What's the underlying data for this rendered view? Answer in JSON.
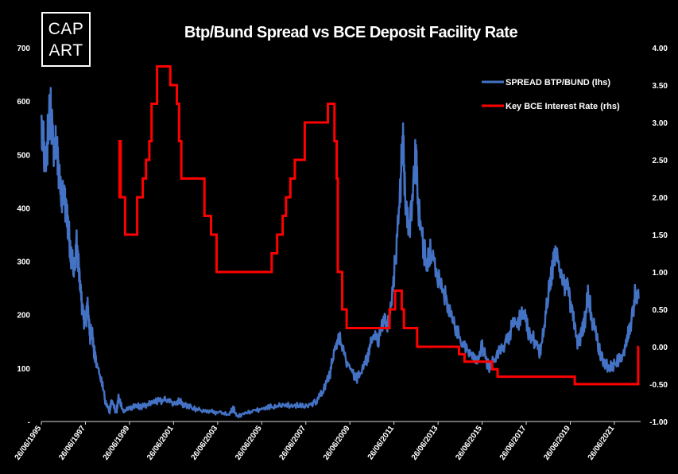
{
  "logo": {
    "line1": "CAP",
    "line2": "ART"
  },
  "chart_data": {
    "type": "line",
    "title": "Btp/Bund Spread vs BCE Deposit Facility Rate",
    "xlabel": "",
    "ylabel": "",
    "y2label": "",
    "ylim": [
      0,
      700
    ],
    "y2lim": [
      -1.0,
      4.0
    ],
    "xlim": [
      1995.5,
      2022.6
    ],
    "yticks": [
      "-",
      "100",
      "200",
      "300",
      "400",
      "500",
      "600",
      "700"
    ],
    "y2ticks": [
      "-1.00",
      "-0.50",
      "0.00",
      "0.50",
      "1.00",
      "1.50",
      "2.00",
      "2.50",
      "3.00",
      "3.50",
      "4.00"
    ],
    "xticks": [
      "26/06/1995",
      "26/06/1997",
      "26/06/1999",
      "26/06/2001",
      "26/06/2003",
      "26/06/2005",
      "26/06/2007",
      "26/06/2009",
      "26/06/2011",
      "26/06/2013",
      "26/06/2015",
      "26/06/2017",
      "26/06/2019",
      "26/06/2021"
    ],
    "legend_position": "top-right",
    "colors": {
      "spread": "#4472c4",
      "rate": "#ff0000"
    },
    "series": [
      {
        "name": "SPREAD BTP/BUND (lhs)",
        "axis": "left",
        "points": [
          [
            1995.5,
            570
          ],
          [
            1995.6,
            520
          ],
          [
            1995.7,
            480
          ],
          [
            1995.8,
            540
          ],
          [
            1995.9,
            590
          ],
          [
            1996.0,
            540
          ],
          [
            1996.1,
            500
          ],
          [
            1996.2,
            520
          ],
          [
            1996.3,
            470
          ],
          [
            1996.4,
            420
          ],
          [
            1996.5,
            440
          ],
          [
            1996.6,
            400
          ],
          [
            1996.7,
            370
          ],
          [
            1996.8,
            330
          ],
          [
            1996.9,
            300
          ],
          [
            1997.0,
            280
          ],
          [
            1997.1,
            330
          ],
          [
            1997.2,
            290
          ],
          [
            1997.3,
            230
          ],
          [
            1997.4,
            200
          ],
          [
            1997.5,
            180
          ],
          [
            1997.6,
            220
          ],
          [
            1997.7,
            160
          ],
          [
            1997.8,
            170
          ],
          [
            1997.9,
            130
          ],
          [
            1998.0,
            110
          ],
          [
            1998.2,
            80
          ],
          [
            1998.4,
            40
          ],
          [
            1998.6,
            20
          ],
          [
            1998.7,
            40
          ],
          [
            1998.9,
            15
          ],
          [
            1999.0,
            45
          ],
          [
            1999.2,
            20
          ],
          [
            1999.5,
            25
          ],
          [
            1999.8,
            30
          ],
          [
            2000.0,
            28
          ],
          [
            2000.4,
            32
          ],
          [
            2000.8,
            38
          ],
          [
            2001.2,
            40
          ],
          [
            2001.5,
            35
          ],
          [
            2001.8,
            38
          ],
          [
            2002.0,
            30
          ],
          [
            2002.4,
            25
          ],
          [
            2002.8,
            22
          ],
          [
            2003.2,
            20
          ],
          [
            2003.6,
            15
          ],
          [
            2004.0,
            12
          ],
          [
            2004.2,
            25
          ],
          [
            2004.4,
            10
          ],
          [
            2004.8,
            15
          ],
          [
            2005.2,
            20
          ],
          [
            2005.6,
            25
          ],
          [
            2006.0,
            28
          ],
          [
            2006.4,
            30
          ],
          [
            2006.8,
            32
          ],
          [
            2007.2,
            28
          ],
          [
            2007.6,
            30
          ],
          [
            2008.0,
            40
          ],
          [
            2008.3,
            60
          ],
          [
            2008.6,
            90
          ],
          [
            2008.8,
            130
          ],
          [
            2009.0,
            160
          ],
          [
            2009.2,
            130
          ],
          [
            2009.5,
            100
          ],
          [
            2009.8,
            80
          ],
          [
            2010.0,
            90
          ],
          [
            2010.3,
            120
          ],
          [
            2010.5,
            160
          ],
          [
            2010.8,
            150
          ],
          [
            2011.0,
            190
          ],
          [
            2011.2,
            180
          ],
          [
            2011.4,
            230
          ],
          [
            2011.6,
            320
          ],
          [
            2011.8,
            450
          ],
          [
            2011.9,
            540
          ],
          [
            2012.0,
            420
          ],
          [
            2012.2,
            360
          ],
          [
            2012.4,
            450
          ],
          [
            2012.5,
            510
          ],
          [
            2012.6,
            400
          ],
          [
            2012.8,
            340
          ],
          [
            2013.0,
            290
          ],
          [
            2013.2,
            330
          ],
          [
            2013.5,
            270
          ],
          [
            2013.8,
            240
          ],
          [
            2014.0,
            210
          ],
          [
            2014.3,
            170
          ],
          [
            2014.6,
            150
          ],
          [
            2014.9,
            130
          ],
          [
            2015.2,
            110
          ],
          [
            2015.5,
            140
          ],
          [
            2015.8,
            100
          ],
          [
            2016.0,
            110
          ],
          [
            2016.3,
            130
          ],
          [
            2016.6,
            150
          ],
          [
            2016.9,
            180
          ],
          [
            2017.2,
            190
          ],
          [
            2017.4,
            210
          ],
          [
            2017.6,
            170
          ],
          [
            2017.9,
            150
          ],
          [
            2018.1,
            130
          ],
          [
            2018.3,
            170
          ],
          [
            2018.5,
            250
          ],
          [
            2018.7,
            290
          ],
          [
            2018.9,
            310
          ],
          [
            2019.1,
            260
          ],
          [
            2019.4,
            250
          ],
          [
            2019.6,
            200
          ],
          [
            2019.8,
            150
          ],
          [
            2020.0,
            160
          ],
          [
            2020.2,
            200
          ],
          [
            2020.3,
            240
          ],
          [
            2020.5,
            190
          ],
          [
            2020.8,
            140
          ],
          [
            2021.0,
            110
          ],
          [
            2021.3,
            100
          ],
          [
            2021.6,
            110
          ],
          [
            2021.9,
            130
          ],
          [
            2022.1,
            160
          ],
          [
            2022.3,
            190
          ],
          [
            2022.45,
            240
          ],
          [
            2022.6,
            230
          ]
        ]
      },
      {
        "name": "Key BCE Interest Rate (rhs)",
        "axis": "right",
        "type": "step",
        "points": [
          [
            1999.0,
            2.0
          ],
          [
            1999.05,
            2.75
          ],
          [
            1999.1,
            2.0
          ],
          [
            1999.3,
            1.5
          ],
          [
            1999.85,
            2.0
          ],
          [
            2000.1,
            2.25
          ],
          [
            2000.25,
            2.5
          ],
          [
            2000.4,
            2.75
          ],
          [
            2000.5,
            3.25
          ],
          [
            2000.75,
            3.75
          ],
          [
            2001.35,
            3.5
          ],
          [
            2001.65,
            3.25
          ],
          [
            2001.75,
            2.75
          ],
          [
            2001.85,
            2.25
          ],
          [
            2002.9,
            1.75
          ],
          [
            2003.2,
            1.5
          ],
          [
            2003.45,
            1.0
          ],
          [
            2005.95,
            1.25
          ],
          [
            2006.2,
            1.5
          ],
          [
            2006.45,
            1.75
          ],
          [
            2006.6,
            2.0
          ],
          [
            2006.8,
            2.25
          ],
          [
            2007.0,
            2.5
          ],
          [
            2007.45,
            3.0
          ],
          [
            2008.5,
            3.25
          ],
          [
            2008.8,
            2.75
          ],
          [
            2008.9,
            2.25
          ],
          [
            2008.95,
            1.0
          ],
          [
            2009.15,
            0.5
          ],
          [
            2009.35,
            0.25
          ],
          [
            2011.3,
            0.5
          ],
          [
            2011.55,
            0.75
          ],
          [
            2011.85,
            0.5
          ],
          [
            2011.95,
            0.25
          ],
          [
            2012.55,
            0.0
          ],
          [
            2014.45,
            -0.1
          ],
          [
            2014.7,
            -0.2
          ],
          [
            2015.95,
            -0.3
          ],
          [
            2016.2,
            -0.4
          ],
          [
            2019.7,
            -0.5
          ],
          [
            2022.58,
            0.0
          ],
          [
            2022.6,
            0.0
          ]
        ]
      }
    ]
  }
}
